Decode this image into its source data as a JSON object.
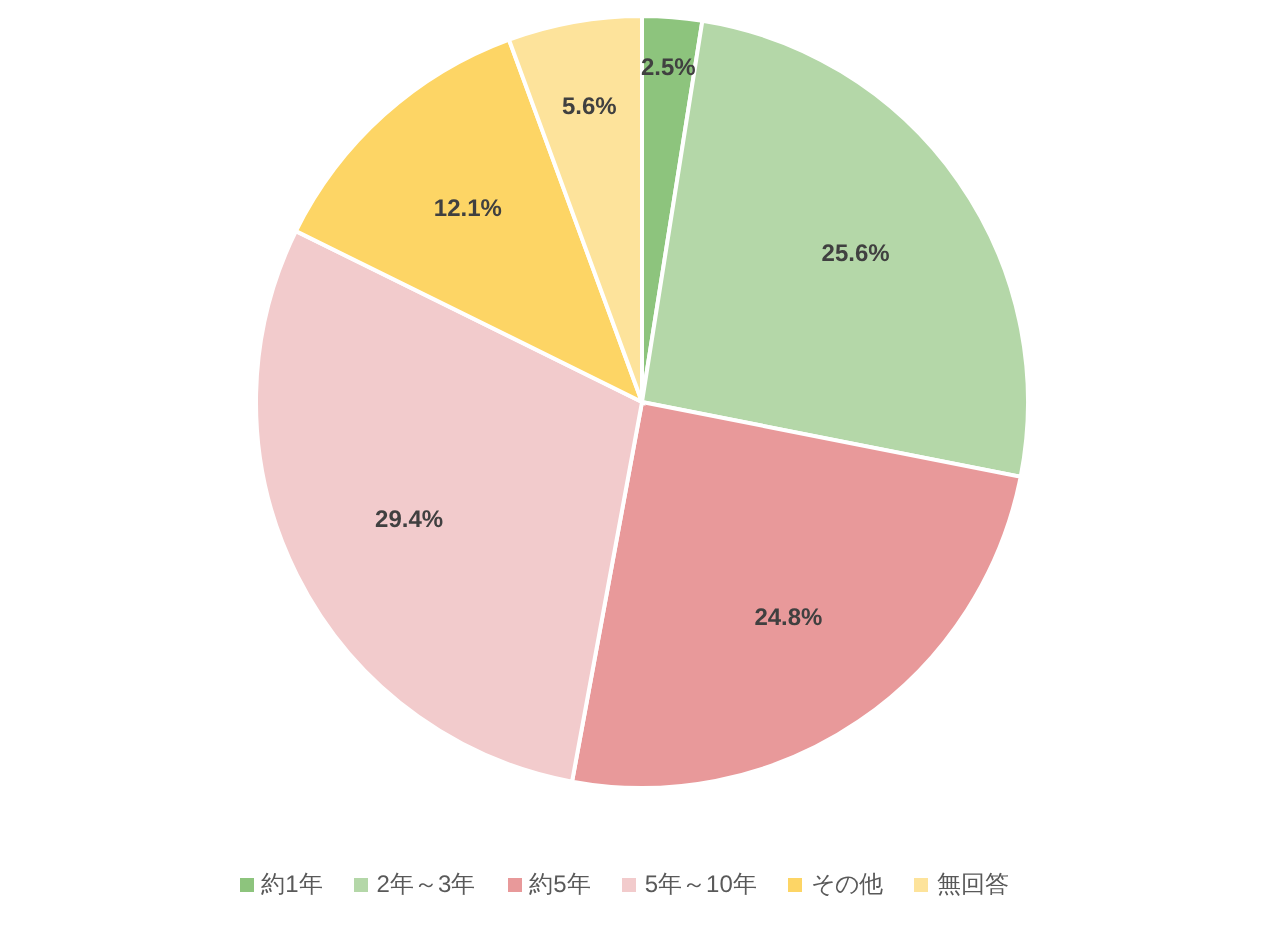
{
  "chart_data": {
    "type": "pie",
    "categories": [
      "約1年",
      "2年～3年",
      "約5年",
      "5年～10年",
      "その他",
      "無回答"
    ],
    "values": [
      2.5,
      25.6,
      24.8,
      29.4,
      12.1,
      5.6
    ],
    "colors": [
      "#8dc47d",
      "#b4d7a8",
      "#e8999a",
      "#f2cbcc",
      "#fdd565",
      "#fde39b"
    ],
    "value_labels": [
      "2.5%",
      "25.6%",
      "24.8%",
      "29.4%",
      "12.1%",
      "5.6%"
    ],
    "legend": "bottom"
  }
}
